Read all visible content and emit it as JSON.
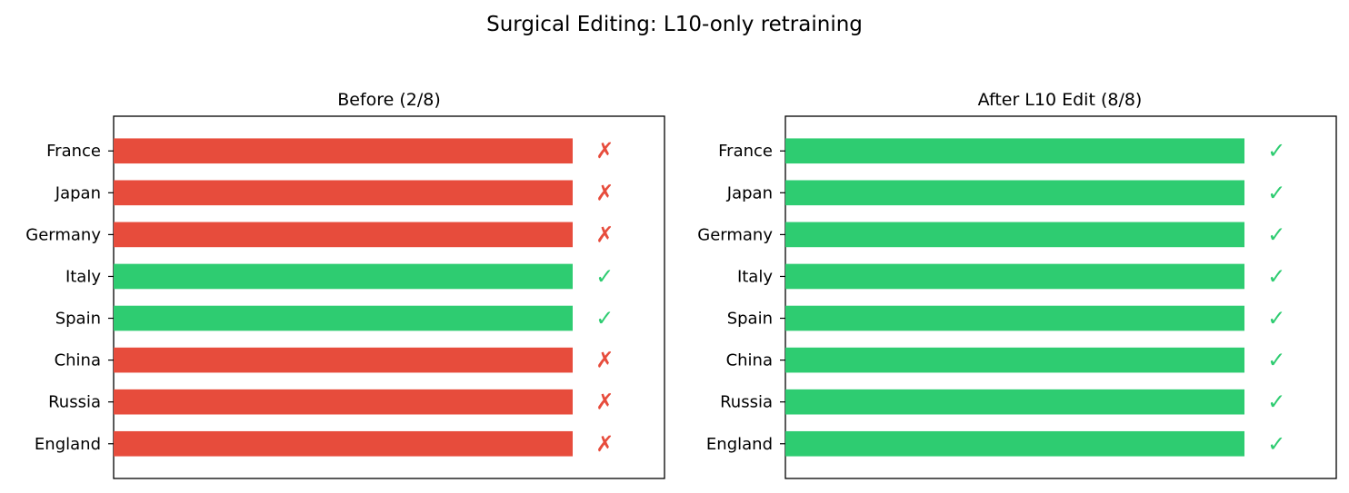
{
  "figure": {
    "title": "Surgical Editing: L10-only retraining"
  },
  "colors": {
    "correct": "#2ecc71",
    "incorrect": "#e74c3c"
  },
  "chart_data": [
    {
      "type": "bar",
      "orientation": "horizontal",
      "title": "Before (2/8)",
      "xlabel": "",
      "ylabel": "",
      "categories": [
        "France",
        "Japan",
        "Germany",
        "Italy",
        "Spain",
        "China",
        "Russia",
        "England"
      ],
      "values": [
        1,
        1,
        1,
        1,
        1,
        1,
        1,
        1
      ],
      "status": [
        "incorrect",
        "incorrect",
        "incorrect",
        "correct",
        "correct",
        "incorrect",
        "incorrect",
        "incorrect"
      ],
      "markers": [
        "✗",
        "✗",
        "✗",
        "✓",
        "✓",
        "✗",
        "✗",
        "✗"
      ],
      "xlim": [
        0,
        1.2
      ],
      "grid": false
    },
    {
      "type": "bar",
      "orientation": "horizontal",
      "title": "After L10 Edit (8/8)",
      "xlabel": "",
      "ylabel": "",
      "categories": [
        "France",
        "Japan",
        "Germany",
        "Italy",
        "Spain",
        "China",
        "Russia",
        "England"
      ],
      "values": [
        1,
        1,
        1,
        1,
        1,
        1,
        1,
        1
      ],
      "status": [
        "correct",
        "correct",
        "correct",
        "correct",
        "correct",
        "correct",
        "correct",
        "correct"
      ],
      "markers": [
        "✓",
        "✓",
        "✓",
        "✓",
        "✓",
        "✓",
        "✓",
        "✓"
      ],
      "xlim": [
        0,
        1.2
      ],
      "grid": false
    }
  ]
}
